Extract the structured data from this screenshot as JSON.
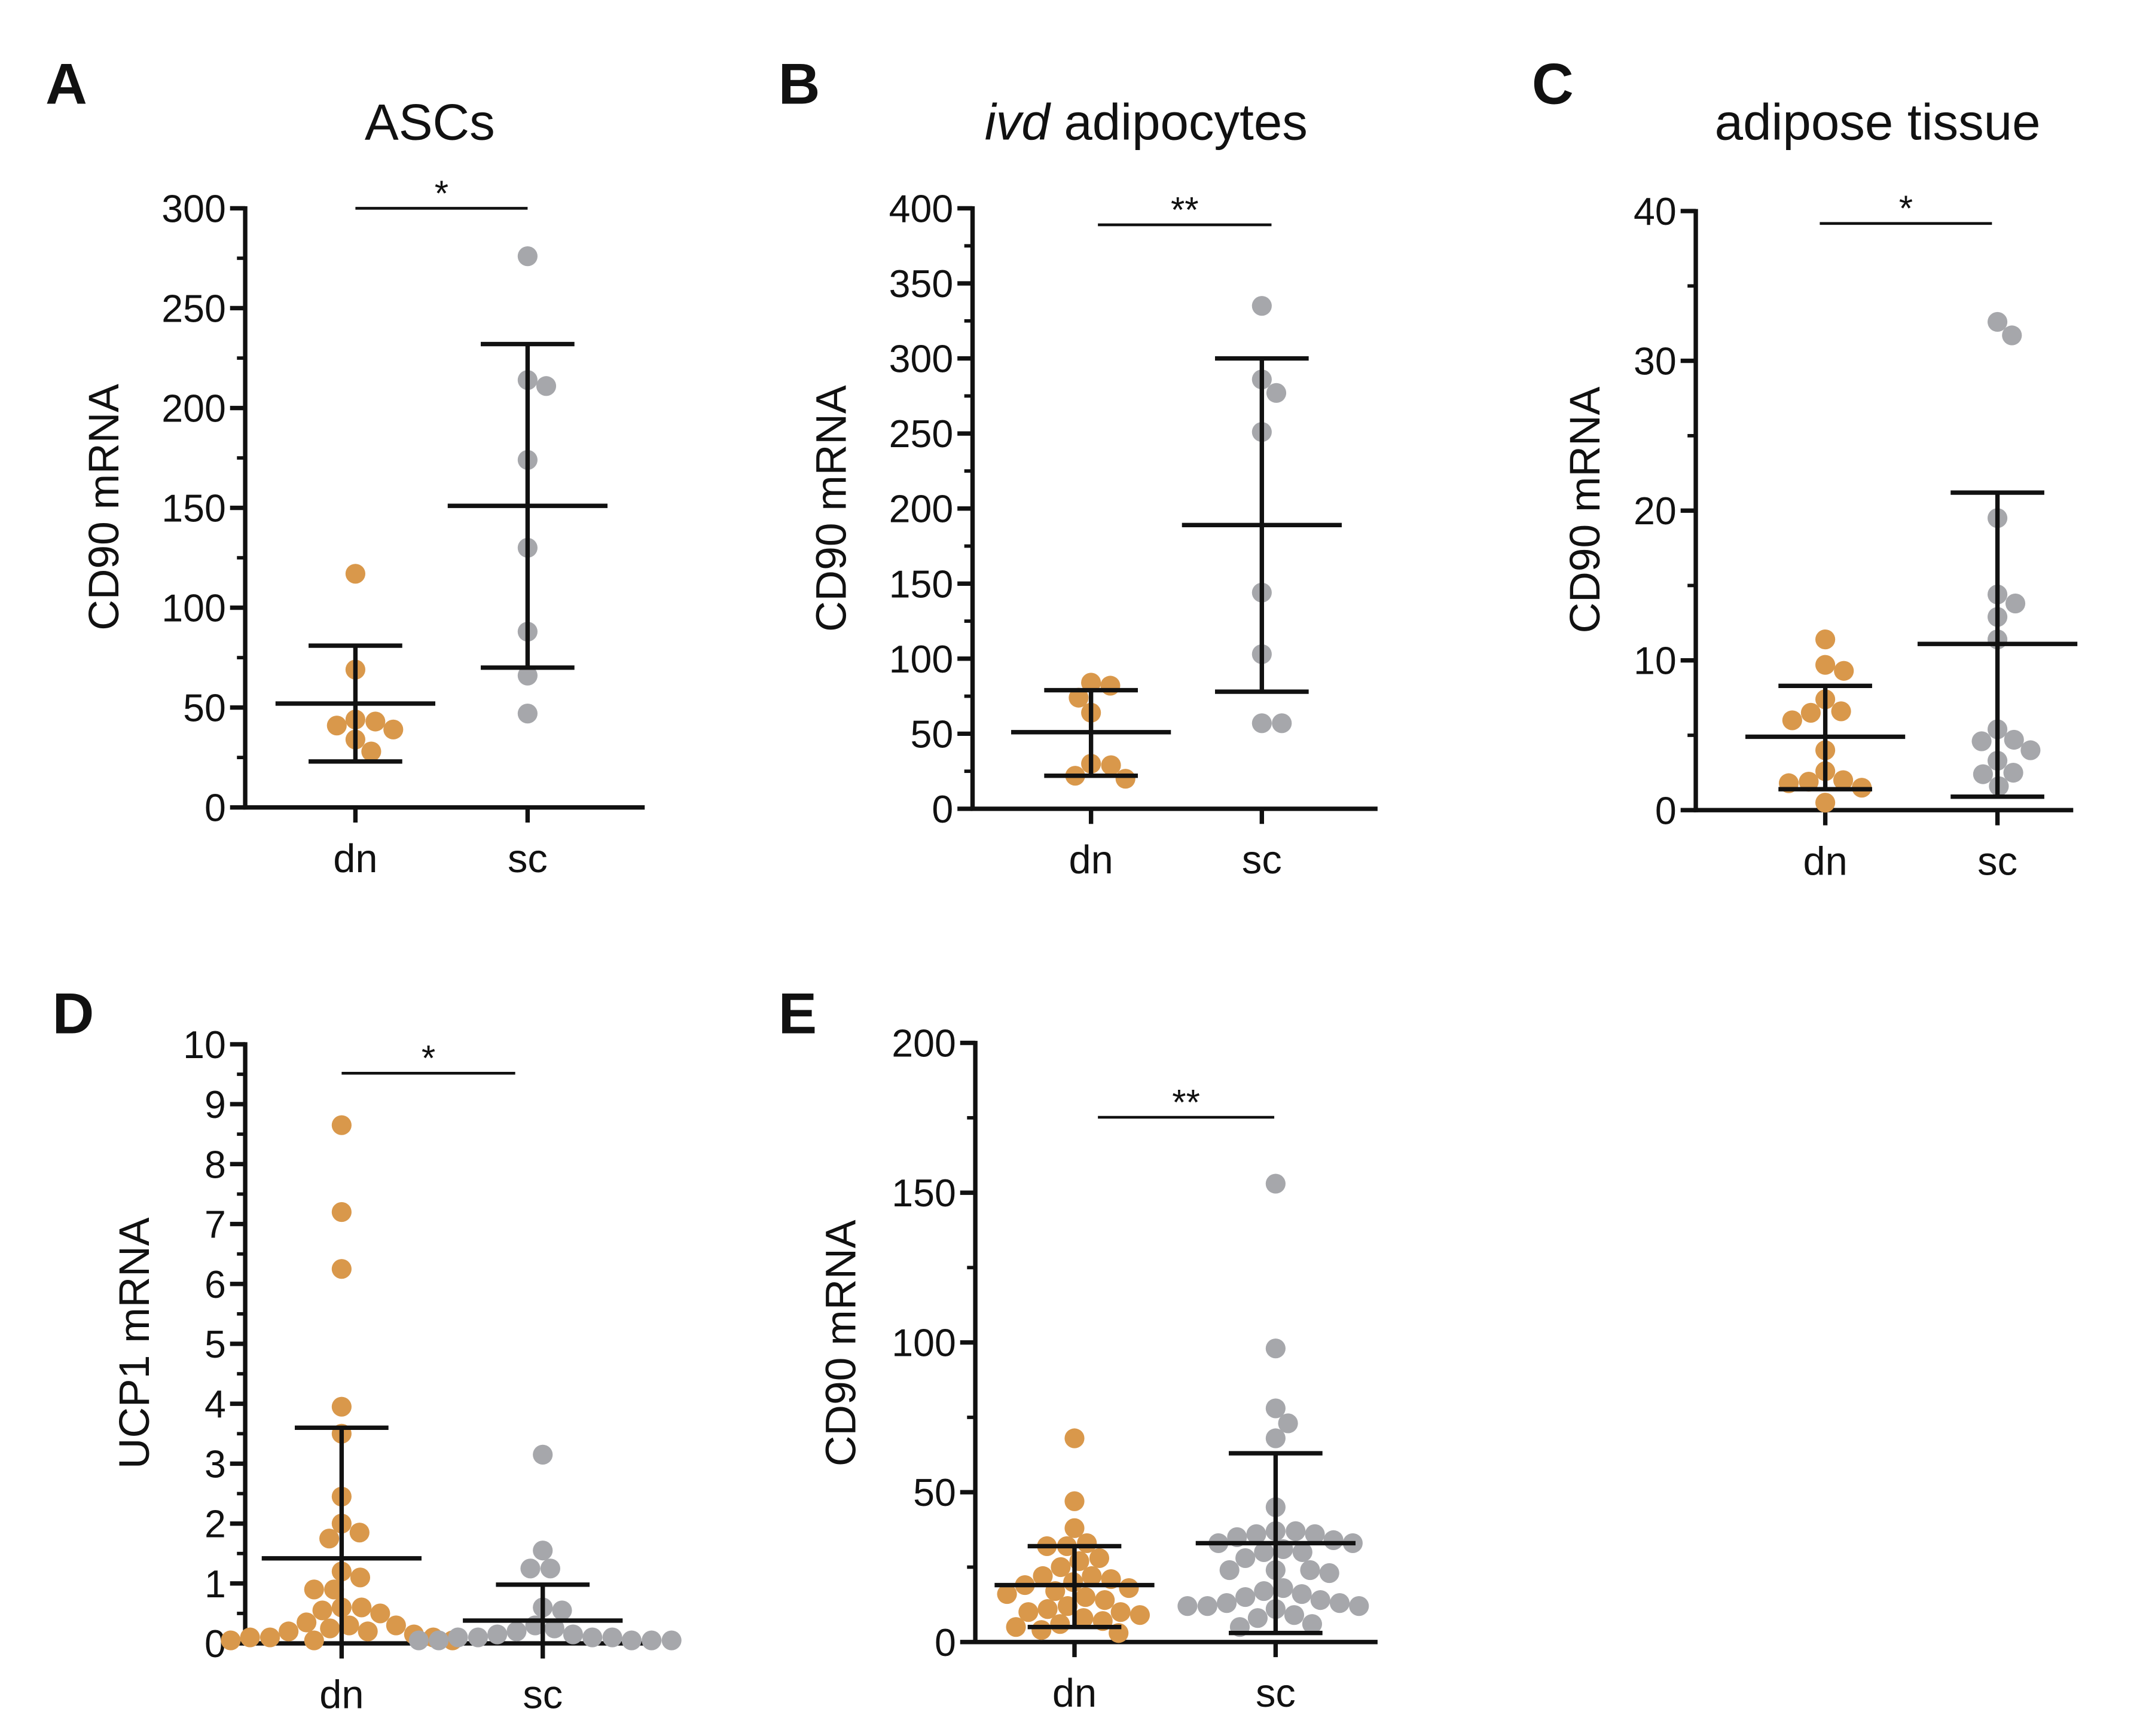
{
  "colors": {
    "dn": "#D9984B",
    "sc": "#A6A7AB",
    "axis": "#111111"
  },
  "chart_data": [
    {
      "panel": "A",
      "type": "scatter",
      "title": "ASCs",
      "title_italic_prefix": "",
      "ylabel": "CD90 mRNA",
      "categories": [
        "dn",
        "sc"
      ],
      "ylim": [
        0,
        300
      ],
      "yticks": [
        0,
        50,
        100,
        150,
        200,
        250,
        300
      ],
      "minor_step": 25,
      "significance": "*",
      "series": [
        {
          "name": "dn",
          "values": [
            117,
            69,
            44,
            43,
            41,
            39,
            34,
            28
          ],
          "mean": 52,
          "sd_low": 23,
          "sd_high": 81
        },
        {
          "name": "sc",
          "values": [
            276,
            214,
            211,
            174,
            130,
            88,
            66,
            47
          ],
          "mean": 151,
          "sd_low": 70,
          "sd_high": 232
        }
      ]
    },
    {
      "panel": "B",
      "type": "scatter",
      "title": "adipocytes",
      "title_italic_prefix": "ivd",
      "ylabel": "CD90 mRNA",
      "categories": [
        "dn",
        "sc"
      ],
      "ylim": [
        0,
        400
      ],
      "yticks": [
        0,
        50,
        100,
        150,
        200,
        250,
        300,
        350,
        400
      ],
      "minor_step": 25,
      "significance": "**",
      "series": [
        {
          "name": "dn",
          "values": [
            84,
            82,
            74,
            64,
            30,
            29,
            22,
            20
          ],
          "mean": 51,
          "sd_low": 22,
          "sd_high": 79
        },
        {
          "name": "sc",
          "values": [
            335,
            286,
            277,
            251,
            144,
            103,
            57,
            57
          ],
          "mean": 189,
          "sd_low": 78,
          "sd_high": 300
        }
      ]
    },
    {
      "panel": "C",
      "type": "scatter",
      "title": "adipose tissue",
      "title_italic_prefix": "",
      "ylabel": "CD90 mRNA",
      "categories": [
        "dn",
        "sc"
      ],
      "ylim": [
        0,
        40
      ],
      "yticks": [
        0,
        10,
        20,
        30,
        40
      ],
      "minor_step": 5,
      "significance": "*",
      "series": [
        {
          "name": "dn",
          "values": [
            11.4,
            9.7,
            9.3,
            7.4,
            6.6,
            6.5,
            6.0,
            4.0,
            2.6,
            2.0,
            1.9,
            1.8,
            1.5,
            0.5
          ],
          "mean": 4.9,
          "sd_low": 1.4,
          "sd_high": 8.3
        },
        {
          "name": "sc",
          "values": [
            32.6,
            31.7,
            19.5,
            14.4,
            13.8,
            12.9,
            11.4,
            5.4,
            4.7,
            4.6,
            4.0,
            3.3,
            2.5,
            2.4,
            1.6
          ],
          "mean": 11.1,
          "sd_low": 0.9,
          "sd_high": 21.2
        }
      ]
    },
    {
      "panel": "D",
      "type": "scatter",
      "title": "",
      "title_italic_prefix": "",
      "ylabel": "UCP1 mRNA",
      "categories": [
        "dn",
        "sc"
      ],
      "ylim": [
        0,
        10
      ],
      "yticks": [
        0,
        1,
        2,
        3,
        4,
        5,
        6,
        7,
        8,
        9,
        10
      ],
      "minor_step": 0.5,
      "significance": "*",
      "series": [
        {
          "name": "dn",
          "values": [
            8.65,
            7.2,
            6.25,
            3.95,
            3.5,
            2.45,
            2.0,
            1.85,
            1.75,
            1.2,
            1.1,
            0.9,
            0.9,
            0.6,
            0.6,
            0.55,
            0.5,
            0.35,
            0.3,
            0.3,
            0.25,
            0.2,
            0.2,
            0.15,
            0.1,
            0.1,
            0.1,
            0.05,
            0.05,
            0.05
          ],
          "mean": 1.42,
          "sd_low": 0,
          "sd_high": 3.6
        },
        {
          "name": "sc",
          "values": [
            3.15,
            1.55,
            1.25,
            1.25,
            0.6,
            0.55,
            0.3,
            0.25,
            0.2,
            0.15,
            0.15,
            0.1,
            0.1,
            0.1,
            0.1,
            0.05,
            0.05,
            0.05,
            0.05,
            0.05
          ],
          "mean": 0.38,
          "sd_low": 0,
          "sd_high": 0.98
        }
      ]
    },
    {
      "panel": "E",
      "type": "scatter",
      "title": "",
      "title_italic_prefix": "",
      "ylabel": "CD90 mRNA",
      "categories": [
        "dn",
        "sc"
      ],
      "ylim": [
        0,
        200
      ],
      "yticks": [
        0,
        50,
        100,
        150,
        200
      ],
      "minor_step": 25,
      "significance": "**",
      "series": [
        {
          "name": "dn",
          "values": [
            68,
            47,
            38,
            33,
            32,
            32,
            28,
            27,
            25,
            22,
            22,
            21,
            20,
            19,
            18,
            17,
            16,
            15,
            14,
            12,
            11,
            10,
            10,
            9,
            8,
            7,
            6,
            5,
            4,
            3
          ],
          "mean": 19,
          "sd_low": 5,
          "sd_high": 32
        },
        {
          "name": "sc",
          "values": [
            153,
            98,
            78,
            73,
            68,
            45,
            37,
            37,
            36,
            36,
            35,
            34,
            33,
            33,
            31,
            30,
            30,
            28,
            24,
            24,
            24,
            23,
            18,
            17,
            16,
            15,
            14,
            13,
            13,
            12,
            12,
            12,
            11,
            9,
            8,
            6,
            5
          ],
          "mean": 33,
          "sd_low": 3,
          "sd_high": 63
        }
      ]
    }
  ]
}
